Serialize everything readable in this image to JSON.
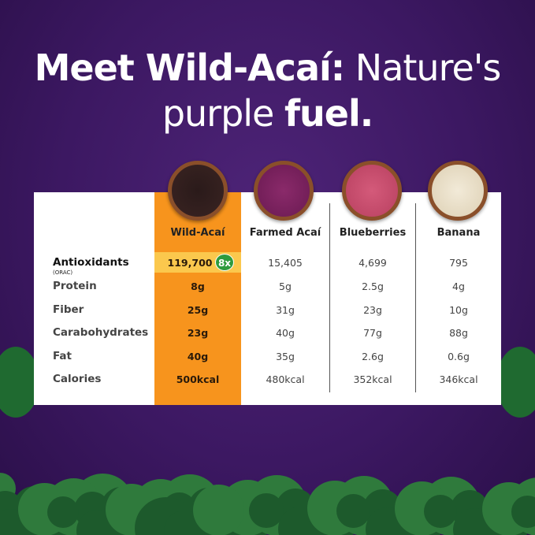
{
  "headline": {
    "bold1": "Meet Wild-Acaí:",
    "light1": "Nature's",
    "light2": "purple",
    "bold2": "fuel."
  },
  "columns": [
    "Wild-Acaí",
    "Farmed Acaí",
    "Blueberries",
    "Banana"
  ],
  "rows": [
    {
      "label": "Antioxidants",
      "sublabel": "(ORAC)",
      "values": [
        "119,700",
        "15,405",
        "4,699",
        "795"
      ],
      "badge": "8x"
    },
    {
      "label": "Protein",
      "values": [
        "8g",
        "5g",
        "2.5g",
        "4g"
      ]
    },
    {
      "label": "Fiber",
      "values": [
        "25g",
        "31g",
        "23g",
        "10g"
      ]
    },
    {
      "label": "Carabohydrates",
      "values": [
        "23g",
        "40g",
        "77g",
        "88g"
      ]
    },
    {
      "label": "Fat",
      "values": [
        "40g",
        "35g",
        "2.6g",
        "0.6g"
      ]
    },
    {
      "label": "Calories",
      "values": [
        "500kcal",
        "480kcal",
        "352kcal",
        "346kcal"
      ]
    }
  ],
  "colors": {
    "background": "#3c1862",
    "highlight_column": "#f7941d",
    "highlight_row": "#fbc84d",
    "badge": "#2e9b3e"
  }
}
